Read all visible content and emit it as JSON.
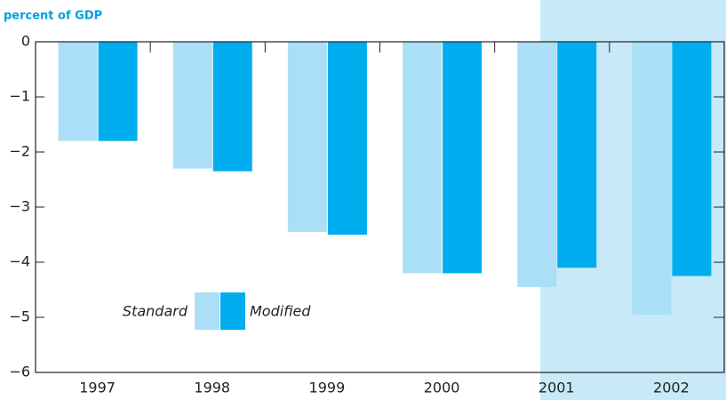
{
  "chart_data": {
    "type": "bar",
    "title": "percent of GDP",
    "categories": [
      "1997",
      "1998",
      "1999",
      "2000",
      "2001",
      "2002"
    ],
    "series": [
      {
        "name": "Standard",
        "color": "#aadff7",
        "values": [
          -1.8,
          -2.3,
          -3.45,
          -4.2,
          -4.45,
          -4.95
        ]
      },
      {
        "name": "Modified",
        "color": "#00aeef",
        "values": [
          -1.8,
          -2.35,
          -3.5,
          -4.2,
          -4.1,
          -4.25
        ]
      }
    ],
    "ylim": [
      -6,
      0
    ],
    "yticks": [
      {
        "value": -6,
        "label": "−6"
      },
      {
        "value": -5,
        "label": "−5"
      },
      {
        "value": -4,
        "label": "−4"
      },
      {
        "value": -3,
        "label": "−3"
      },
      {
        "value": -2,
        "label": "−2"
      },
      {
        "value": -1,
        "label": "−1"
      },
      0
    ],
    "grid": false
  }
}
